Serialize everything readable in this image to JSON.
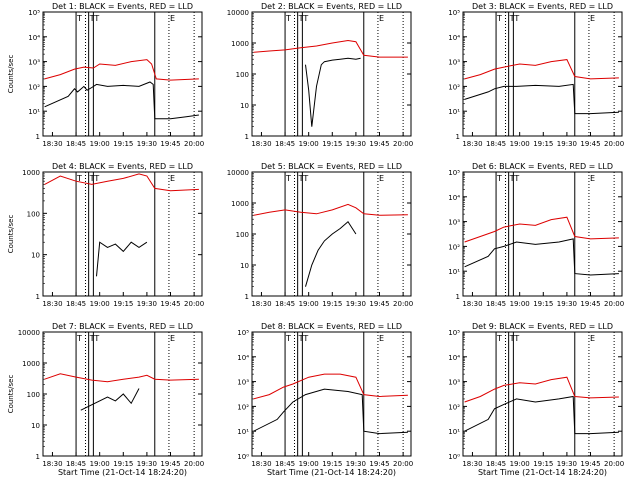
{
  "figure": {
    "background": "#ffffff",
    "events_color": "#000000",
    "lld_color": "#dd0000"
  },
  "chart_data": [
    {
      "type": "line",
      "title": "Det 1: BLACK = Events, RED = LLD",
      "ylabel": "Counts/sec",
      "xlabel": "",
      "log_y": true,
      "ylim": [
        1,
        100000
      ],
      "yticks": [
        "1",
        "10¹",
        "10²",
        "10³",
        "10⁴",
        "10⁵"
      ],
      "xticks": [
        "18:30",
        "18:45",
        "19:00",
        "19:15",
        "19:30",
        "19:45",
        "20:00"
      ],
      "xlim": [
        "18:24",
        "20:05"
      ],
      "solid_vlines": [
        "18:45",
        "18:53",
        "18:56",
        "19:35"
      ],
      "dotted_vlines": [
        "18:51",
        "19:44",
        "20:00"
      ],
      "flags": [
        "T",
        "T",
        "T",
        "E"
      ],
      "events": {
        "x": [
          "18:25",
          "18:40",
          "18:44",
          "18:46",
          "18:50",
          "18:52",
          "18:55",
          "18:58",
          "19:05",
          "19:15",
          "19:25",
          "19:32",
          "19:34",
          "19:35",
          "19:45",
          "19:55",
          "20:03"
        ],
        "y": [
          15,
          40,
          80,
          60,
          100,
          70,
          90,
          120,
          100,
          110,
          100,
          150,
          120,
          5,
          5,
          6,
          7
        ]
      },
      "lld": {
        "x": [
          "18:25",
          "18:35",
          "18:44",
          "18:50",
          "18:56",
          "19:00",
          "19:10",
          "19:20",
          "19:30",
          "19:33",
          "19:36",
          "19:45",
          "20:03"
        ],
        "y": [
          200,
          300,
          500,
          600,
          550,
          800,
          700,
          1000,
          1200,
          800,
          200,
          180,
          200
        ]
      }
    },
    {
      "type": "line",
      "title": "Det 2: BLACK = Events, RED = LLD",
      "ylabel": "",
      "xlabel": "",
      "log_y": true,
      "ylim": [
        1,
        10000
      ],
      "yticks": [
        "1",
        "10",
        "100",
        "1000",
        "10000"
      ],
      "xticks": [
        "18:30",
        "18:45",
        "19:00",
        "19:15",
        "19:30",
        "19:45",
        "20:00"
      ],
      "xlim": [
        "18:24",
        "20:05"
      ],
      "solid_vlines": [
        "18:45",
        "18:53",
        "18:56",
        "19:35"
      ],
      "dotted_vlines": [
        "18:51",
        "19:44",
        "20:00"
      ],
      "flags": [
        "T",
        "T",
        "T",
        "E"
      ],
      "events": {
        "x": [
          "18:58",
          "19:00",
          "19:02",
          "19:05",
          "19:08",
          "19:10",
          "19:15",
          "19:20",
          "19:25",
          "19:30",
          "19:33"
        ],
        "y": [
          200,
          30,
          2,
          40,
          200,
          250,
          280,
          300,
          320,
          300,
          320
        ]
      },
      "lld": {
        "x": [
          "18:25",
          "18:35",
          "18:45",
          "18:55",
          "19:05",
          "19:15",
          "19:25",
          "19:30",
          "19:35",
          "19:45",
          "20:03"
        ],
        "y": [
          500,
          550,
          600,
          700,
          800,
          1000,
          1200,
          1100,
          400,
          350,
          350
        ]
      }
    },
    {
      "type": "line",
      "title": "Det 3: BLACK = Events, RED = LLD",
      "ylabel": "",
      "xlabel": "",
      "log_y": true,
      "ylim": [
        1,
        100000
      ],
      "yticks": [
        "1",
        "10¹",
        "10²",
        "10³",
        "10⁴",
        "10⁵"
      ],
      "xticks": [
        "18:30",
        "18:45",
        "19:00",
        "19:15",
        "19:30",
        "19:45",
        "20:00"
      ],
      "xlim": [
        "18:24",
        "20:05"
      ],
      "solid_vlines": [
        "18:45",
        "18:53",
        "18:56",
        "19:35"
      ],
      "dotted_vlines": [
        "18:51",
        "19:44",
        "20:00"
      ],
      "flags": [
        "T",
        "T",
        "T",
        "E"
      ],
      "events": {
        "x": [
          "18:25",
          "18:40",
          "18:44",
          "18:50",
          "18:58",
          "19:10",
          "19:25",
          "19:34",
          "19:35",
          "19:45",
          "20:03"
        ],
        "y": [
          30,
          60,
          80,
          100,
          100,
          110,
          100,
          120,
          8,
          8,
          9
        ]
      },
      "lld": {
        "x": [
          "18:25",
          "18:35",
          "18:44",
          "18:50",
          "19:00",
          "19:10",
          "19:20",
          "19:30",
          "19:35",
          "19:45",
          "20:03"
        ],
        "y": [
          200,
          300,
          500,
          600,
          800,
          700,
          1000,
          1200,
          250,
          200,
          220
        ]
      }
    },
    {
      "type": "line",
      "title": "Det 4: BLACK = Events, RED = LLD",
      "ylabel": "Counts/sec",
      "xlabel": "",
      "log_y": true,
      "ylim": [
        1,
        1000
      ],
      "yticks": [
        "1",
        "10",
        "100",
        "1000"
      ],
      "xticks": [
        "18:30",
        "18:45",
        "19:00",
        "19:15",
        "19:30",
        "19:45",
        "20:00"
      ],
      "xlim": [
        "18:24",
        "20:05"
      ],
      "solid_vlines": [
        "18:45",
        "18:53",
        "18:56",
        "19:35"
      ],
      "dotted_vlines": [
        "18:51",
        "19:44",
        "20:00"
      ],
      "flags": [
        "T",
        "T",
        "T",
        "E"
      ],
      "events": {
        "x": [
          "18:58",
          "19:00",
          "19:05",
          "19:10",
          "19:15",
          "19:20",
          "19:25",
          "19:30"
        ],
        "y": [
          3,
          20,
          15,
          18,
          12,
          20,
          15,
          20
        ]
      },
      "lld": {
        "x": [
          "18:25",
          "18:35",
          "18:45",
          "18:55",
          "19:05",
          "19:15",
          "19:25",
          "19:30",
          "19:35",
          "19:45",
          "20:03"
        ],
        "y": [
          500,
          800,
          600,
          500,
          600,
          700,
          900,
          800,
          400,
          350,
          380
        ]
      }
    },
    {
      "type": "line",
      "title": "Det 5: BLACK = Events, RED = LLD",
      "ylabel": "",
      "xlabel": "",
      "log_y": true,
      "ylim": [
        1,
        10000
      ],
      "yticks": [
        "1",
        "10",
        "100",
        "1000",
        "10000"
      ],
      "xticks": [
        "18:30",
        "18:45",
        "19:00",
        "19:15",
        "19:30",
        "19:45",
        "20:00"
      ],
      "xlim": [
        "18:24",
        "20:05"
      ],
      "solid_vlines": [
        "18:45",
        "18:53",
        "18:56",
        "19:35"
      ],
      "dotted_vlines": [
        "18:51",
        "19:44",
        "20:00"
      ],
      "flags": [
        "T",
        "T",
        "T",
        "E"
      ],
      "events": {
        "x": [
          "18:58",
          "19:02",
          "19:06",
          "19:10",
          "19:15",
          "19:20",
          "19:25",
          "19:30"
        ],
        "y": [
          2,
          10,
          30,
          60,
          100,
          150,
          250,
          100
        ]
      },
      "lld": {
        "x": [
          "18:25",
          "18:35",
          "18:45",
          "18:55",
          "19:05",
          "19:15",
          "19:25",
          "19:30",
          "19:35",
          "19:45",
          "20:03"
        ],
        "y": [
          400,
          500,
          600,
          500,
          450,
          600,
          900,
          700,
          450,
          400,
          420
        ]
      }
    },
    {
      "type": "line",
      "title": "Det 6: BLACK = Events, RED = LLD",
      "ylabel": "",
      "xlabel": "",
      "log_y": true,
      "ylim": [
        1,
        100000
      ],
      "yticks": [
        "1",
        "10¹",
        "10²",
        "10³",
        "10⁴",
        "10⁵"
      ],
      "xticks": [
        "18:30",
        "18:45",
        "19:00",
        "19:15",
        "19:30",
        "19:45",
        "20:00"
      ],
      "xlim": [
        "18:24",
        "20:05"
      ],
      "solid_vlines": [
        "18:45",
        "18:53",
        "18:56",
        "19:35"
      ],
      "dotted_vlines": [
        "18:51",
        "19:44",
        "20:00"
      ],
      "flags": [
        "T",
        "T",
        "T",
        "E"
      ],
      "events": {
        "x": [
          "18:25",
          "18:40",
          "18:44",
          "18:50",
          "18:58",
          "19:10",
          "19:25",
          "19:34",
          "19:35",
          "19:45",
          "20:03"
        ],
        "y": [
          15,
          40,
          80,
          100,
          150,
          120,
          150,
          200,
          8,
          7,
          8
        ]
      },
      "lld": {
        "x": [
          "18:25",
          "18:35",
          "18:44",
          "18:50",
          "19:00",
          "19:10",
          "19:20",
          "19:30",
          "19:35",
          "19:45",
          "20:03"
        ],
        "y": [
          150,
          250,
          400,
          600,
          800,
          700,
          1200,
          1500,
          250,
          200,
          220
        ]
      }
    },
    {
      "type": "line",
      "title": "Det 7: BLACK = Events, RED = LLD",
      "ylabel": "Counts/sec",
      "xlabel": "Start Time (21-Oct-14 18:24:20)",
      "log_y": true,
      "ylim": [
        1,
        10000
      ],
      "yticks": [
        "1",
        "10",
        "100",
        "1000",
        "10000"
      ],
      "xticks": [
        "18:30",
        "18:45",
        "19:00",
        "19:15",
        "19:30",
        "19:45",
        "20:00"
      ],
      "xlim": [
        "18:24",
        "20:05"
      ],
      "solid_vlines": [
        "18:45",
        "18:53",
        "18:56",
        "19:35"
      ],
      "dotted_vlines": [
        "18:51",
        "19:44",
        "20:00"
      ],
      "flags": [
        "T",
        "T",
        "T",
        "E"
      ],
      "events": {
        "x": [
          "18:48",
          "19:05",
          "19:10",
          "19:15",
          "19:20",
          "19:25"
        ],
        "y": [
          30,
          80,
          60,
          100,
          50,
          150
        ]
      },
      "lld": {
        "x": [
          "18:25",
          "18:35",
          "18:45",
          "18:55",
          "19:05",
          "19:15",
          "19:25",
          "19:30",
          "19:35",
          "19:45",
          "20:03"
        ],
        "y": [
          300,
          450,
          350,
          280,
          250,
          300,
          350,
          400,
          300,
          280,
          300
        ]
      }
    },
    {
      "type": "line",
      "title": "Det 8: BLACK = Events, RED = LLD",
      "ylabel": "",
      "xlabel": "Start Time (21-Oct-14 18:24:20)",
      "log_y": true,
      "ylim": [
        1,
        100000
      ],
      "yticks": [
        "10⁰",
        "10¹",
        "10²",
        "10³",
        "10⁴",
        "10⁵"
      ],
      "xticks": [
        "18:30",
        "18:45",
        "19:00",
        "19:15",
        "19:30",
        "19:45",
        "20:00"
      ],
      "xlim": [
        "18:24",
        "20:05"
      ],
      "solid_vlines": [
        "18:45",
        "18:53",
        "18:56",
        "19:35"
      ],
      "dotted_vlines": [
        "18:51",
        "19:44",
        "20:00"
      ],
      "flags": [
        "T",
        "T",
        "T",
        "E"
      ],
      "events": {
        "x": [
          "18:25",
          "18:40",
          "18:44",
          "18:50",
          "18:58",
          "19:10",
          "19:25",
          "19:34",
          "19:35",
          "19:45",
          "20:03"
        ],
        "y": [
          10,
          30,
          60,
          150,
          300,
          500,
          400,
          300,
          10,
          8,
          9
        ]
      },
      "lld": {
        "x": [
          "18:25",
          "18:35",
          "18:44",
          "18:50",
          "19:00",
          "19:10",
          "19:20",
          "19:30",
          "19:35",
          "19:45",
          "20:03"
        ],
        "y": [
          200,
          300,
          600,
          800,
          1500,
          2000,
          2000,
          1500,
          300,
          250,
          280
        ]
      }
    },
    {
      "type": "line",
      "title": "Det 9: BLACK = Events, RED = LLD",
      "ylabel": "",
      "xlabel": "Start Time (21-Oct-14 18:24:20)",
      "log_y": true,
      "ylim": [
        1,
        100000
      ],
      "yticks": [
        "10⁰",
        "10¹",
        "10²",
        "10³",
        "10⁴",
        "10⁵"
      ],
      "xticks": [
        "18:30",
        "18:45",
        "19:00",
        "19:15",
        "19:30",
        "19:45",
        "20:00"
      ],
      "xlim": [
        "18:24",
        "20:05"
      ],
      "solid_vlines": [
        "18:45",
        "18:53",
        "18:56",
        "19:35"
      ],
      "dotted_vlines": [
        "18:51",
        "19:44",
        "20:00"
      ],
      "flags": [
        "T",
        "T",
        "T",
        "E"
      ],
      "events": {
        "x": [
          "18:25",
          "18:40",
          "18:44",
          "18:50",
          "18:58",
          "19:10",
          "19:25",
          "19:34",
          "19:35",
          "19:45",
          "20:03"
        ],
        "y": [
          10,
          30,
          80,
          120,
          200,
          150,
          200,
          250,
          8,
          8,
          9
        ]
      },
      "lld": {
        "x": [
          "18:25",
          "18:35",
          "18:44",
          "18:50",
          "19:00",
          "19:10",
          "19:20",
          "19:30",
          "19:35",
          "19:45",
          "20:03"
        ],
        "y": [
          150,
          250,
          500,
          700,
          900,
          800,
          1200,
          1500,
          250,
          220,
          240
        ]
      }
    }
  ]
}
